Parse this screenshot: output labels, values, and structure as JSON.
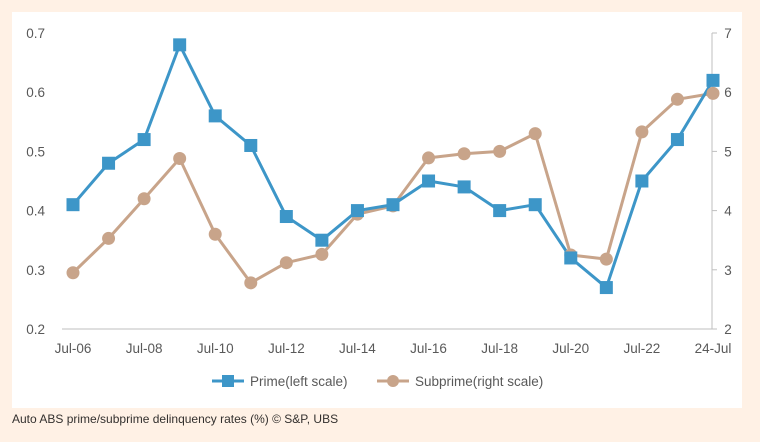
{
  "caption": "Auto ABS prime/subprime delinquency rates (%) © S&P, UBS",
  "colors": {
    "prime": "#3d96c8",
    "subprime": "#c8a48a",
    "axis": "#bfbfbf",
    "text": "#595959",
    "page_bg": "#fff1e5"
  },
  "chart_data": {
    "type": "line",
    "title": "",
    "xlabel": "",
    "ylabel": "",
    "x_tick_labels": [
      "Jul-06",
      "Jul-08",
      "Jul-10",
      "Jul-12",
      "Jul-14",
      "Jul-16",
      "Jul-18",
      "Jul-20",
      "Jul-22",
      "24-Jul"
    ],
    "x": [
      "Jul-06",
      "Jul-07",
      "Jul-08",
      "Jul-09",
      "Jul-10",
      "Jul-11",
      "Jul-12",
      "Jul-13",
      "Jul-14",
      "Jul-15",
      "Jul-16",
      "Jul-17",
      "Jul-18",
      "Jul-19",
      "Jul-20",
      "Jul-21",
      "Jul-22",
      "Jul-23",
      "Jul-24"
    ],
    "y_left": {
      "ylim": [
        0.2,
        0.7
      ],
      "ticks": [
        "0.2",
        "0.3",
        "0.4",
        "0.5",
        "0.6",
        "0.7"
      ]
    },
    "y_right": {
      "ylim": [
        2,
        7
      ],
      "ticks": [
        "2",
        "3",
        "4",
        "5",
        "6",
        "7"
      ]
    },
    "grid": false,
    "legend_position": "bottom",
    "series": [
      {
        "name": "Prime(left scale)",
        "axis": "left",
        "marker": "square",
        "values": [
          0.41,
          0.48,
          0.52,
          0.68,
          0.56,
          0.51,
          0.39,
          0.35,
          0.4,
          0.41,
          0.45,
          0.44,
          0.4,
          0.41,
          0.32,
          0.27,
          0.45,
          0.52,
          0.62
        ]
      },
      {
        "name": "Subprime(right scale)",
        "axis": "right",
        "marker": "circle",
        "values": [
          2.95,
          3.53,
          4.2,
          4.88,
          3.6,
          2.78,
          3.12,
          3.26,
          3.94,
          4.08,
          4.89,
          4.96,
          5.0,
          5.3,
          3.25,
          3.18,
          5.33,
          5.88,
          5.98
        ]
      }
    ]
  }
}
